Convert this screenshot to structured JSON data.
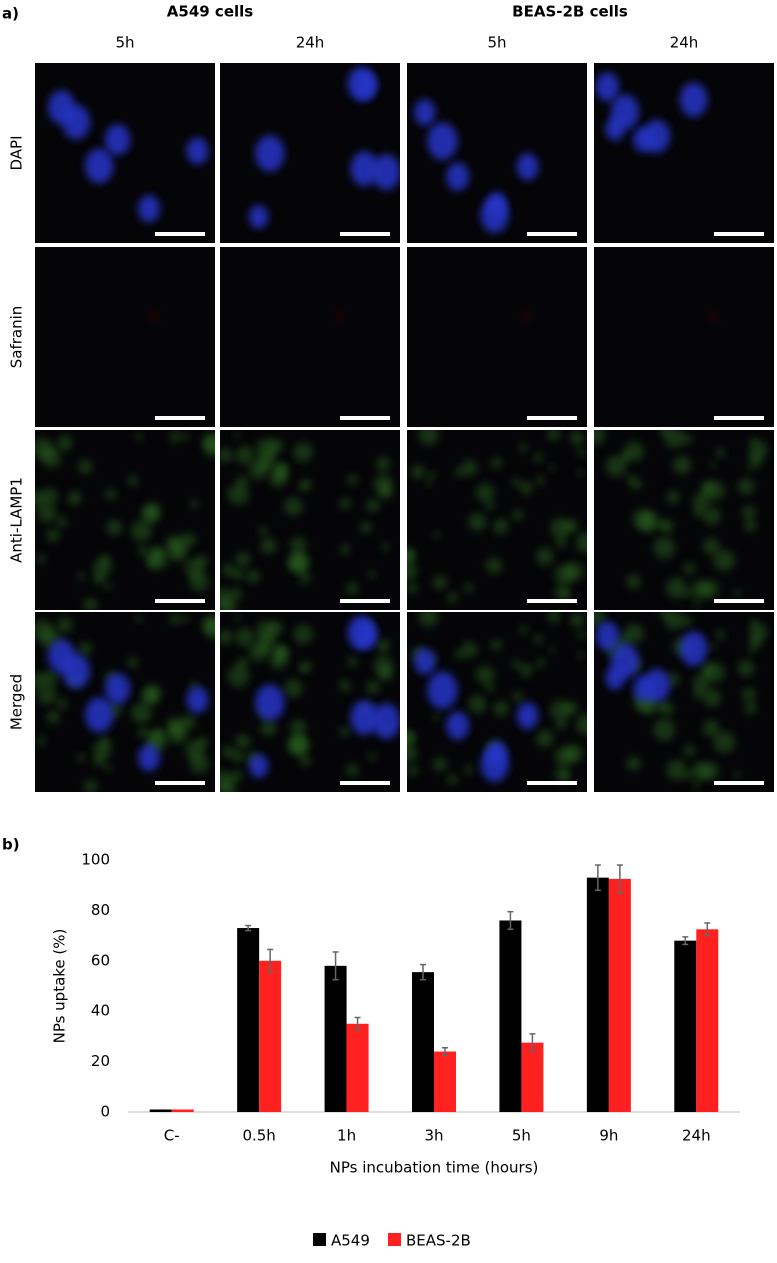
{
  "figure": {
    "panel_label": "a)",
    "groups": [
      "A549 cells",
      "BEAS-2B cells"
    ],
    "columns": [
      "5h",
      "24h",
      "5h",
      "24h"
    ],
    "rows": [
      "DAPI",
      "Safranin",
      "Anti-LAMP1",
      "Merged"
    ]
  },
  "chart_data": {
    "type": "bar",
    "panel_label": "b)",
    "x_label": "NPs incubation time (hours)",
    "y_label": "NPs uptake (%)",
    "categories": [
      "C-",
      "0.5h",
      "1h",
      "3h",
      "5h",
      "9h",
      "24h"
    ],
    "series": [
      {
        "name": "A549",
        "color": "#000000",
        "values": [
          1,
          73,
          58,
          55.5,
          76,
          93,
          68
        ],
        "errors": [
          0,
          1,
          5.5,
          3,
          3.5,
          5,
          1.5
        ]
      },
      {
        "name": "BEAS-2B",
        "color": "#ff2020",
        "values": [
          1,
          60,
          35,
          24,
          27.5,
          92.5,
          72.5
        ],
        "errors": [
          0,
          4.5,
          2.5,
          1.5,
          3.5,
          5.5,
          2.5
        ]
      }
    ],
    "ylim": [
      0,
      100
    ],
    "yticks": [
      0,
      20,
      40,
      60,
      80,
      100
    ],
    "legend": "bottom"
  }
}
